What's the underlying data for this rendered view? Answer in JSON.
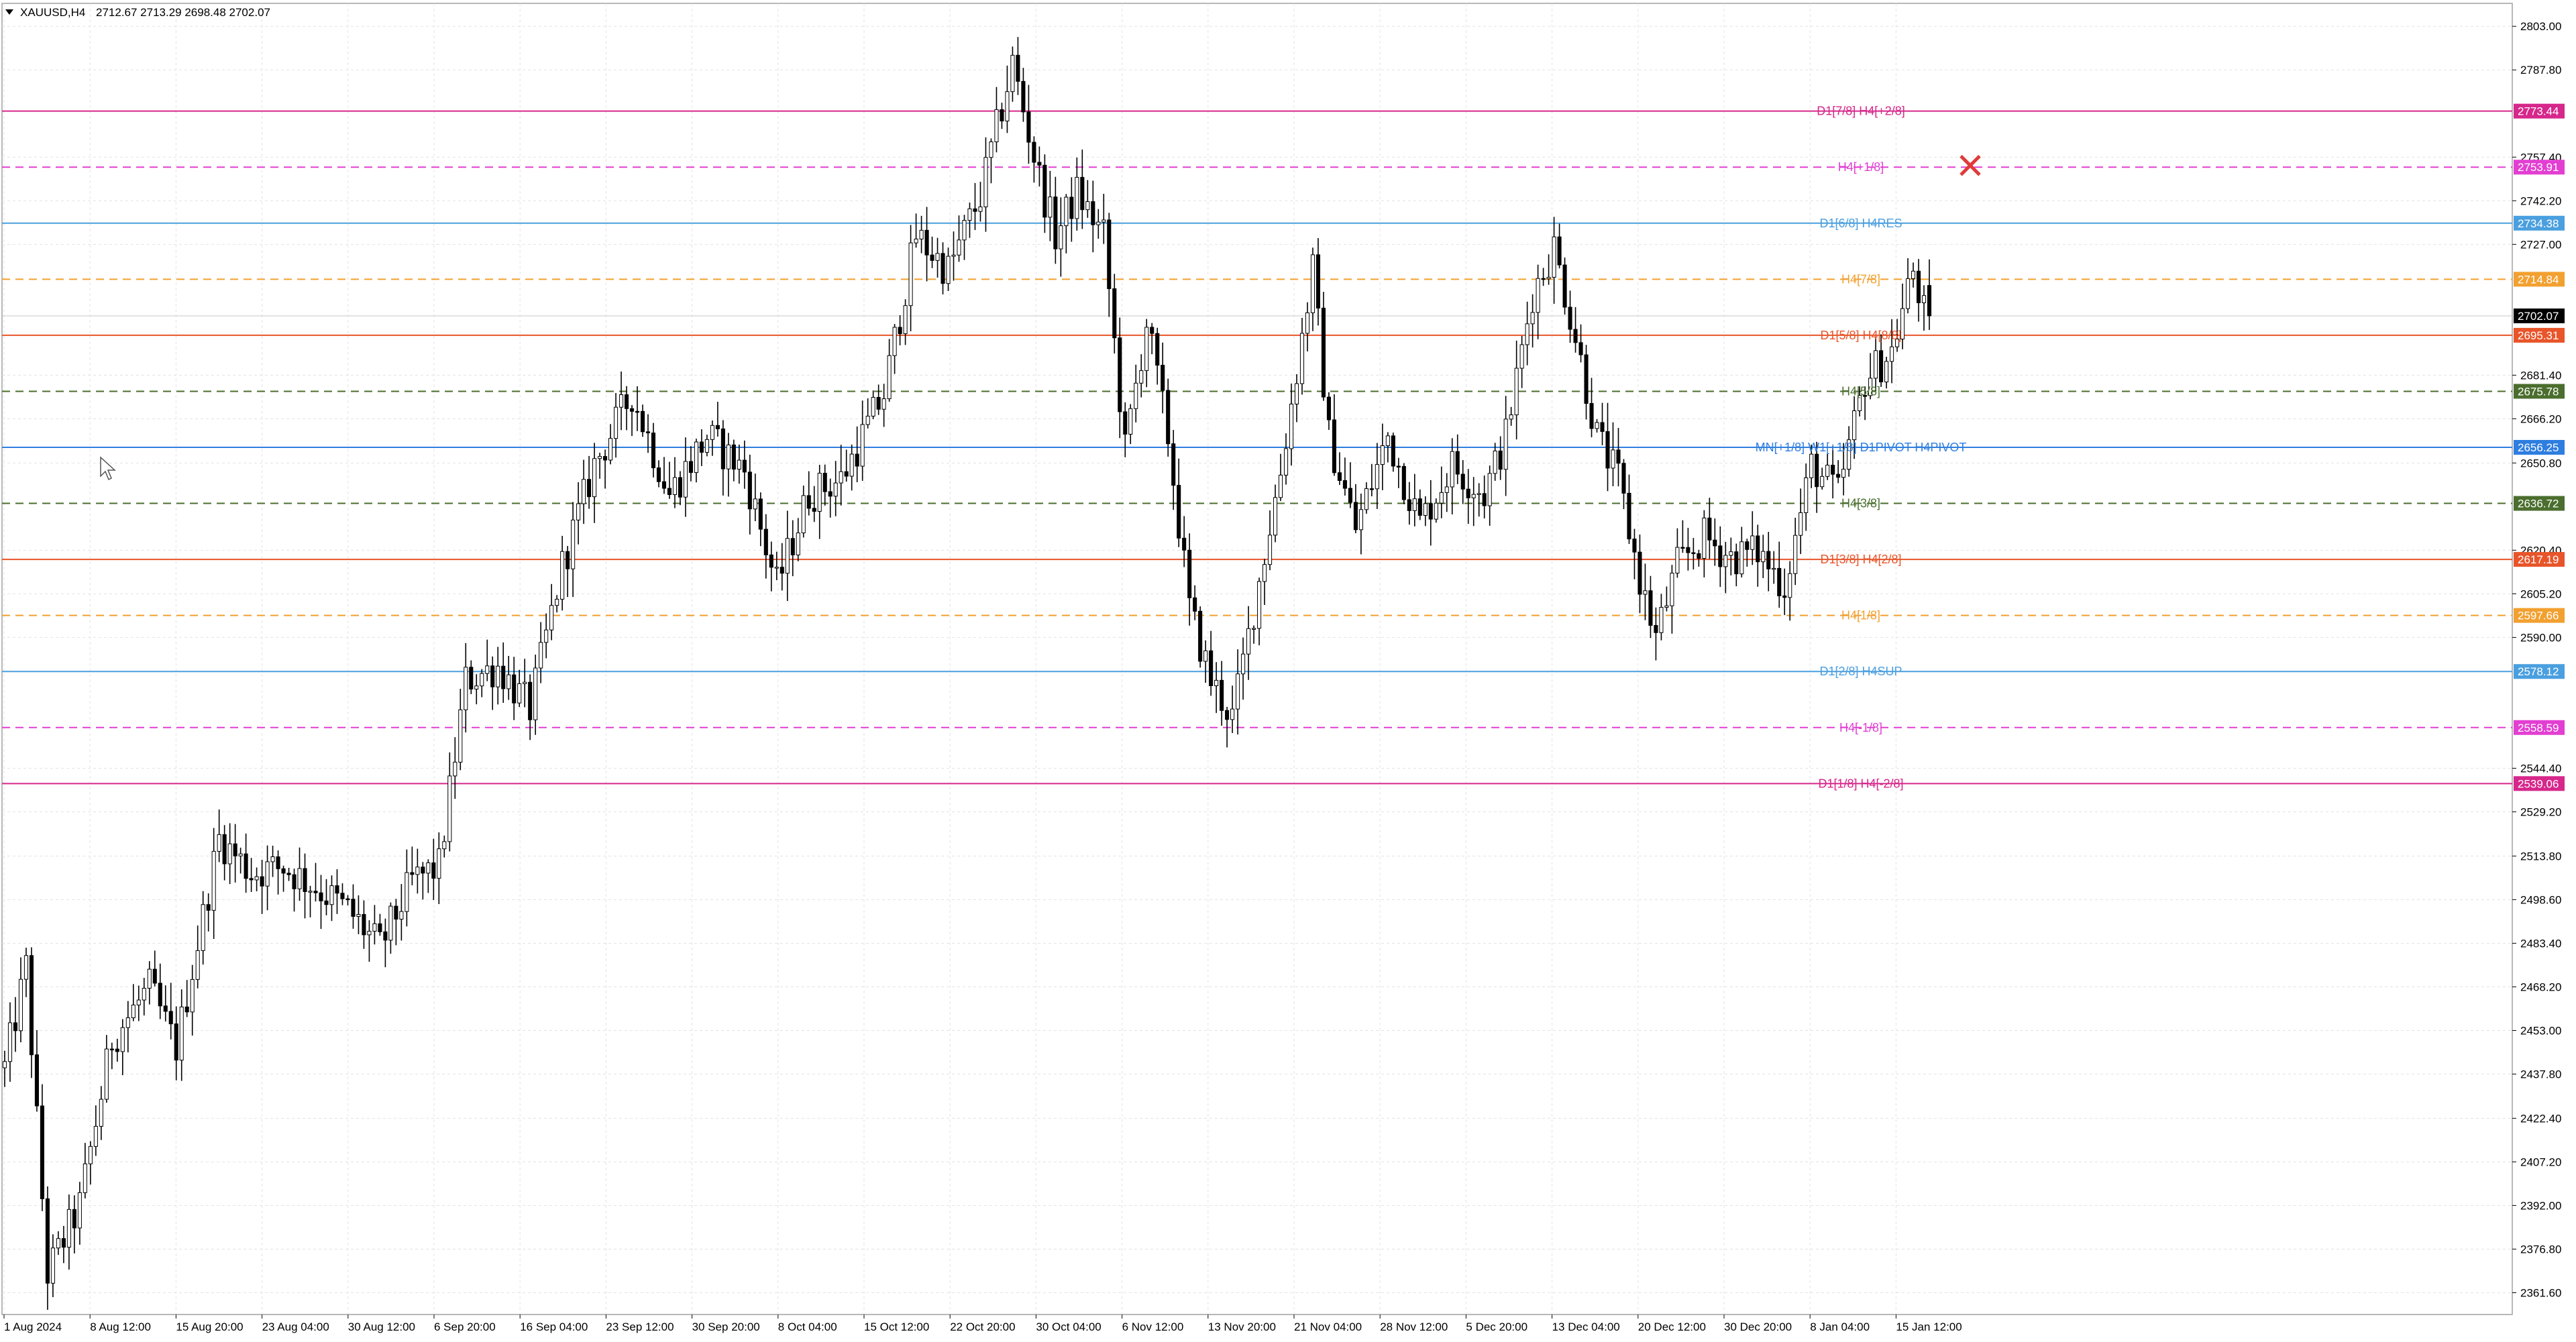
{
  "header": {
    "symbol": "XAUUSD,H4",
    "ohlc": "2712.67 2713.29 2698.48 2702.07"
  },
  "chart_data": {
    "type": "candlestick",
    "symbol": "XAUUSD",
    "timeframe": "H4",
    "ohlc_last": {
      "open": 2712.67,
      "high": 2713.29,
      "low": 2698.48,
      "close": 2702.07
    },
    "current_price": 2702.07,
    "ylim": [
      2354.0,
      2811.0
    ],
    "grid": true,
    "price_ticks": [
      2803.0,
      2787.8,
      2757.4,
      2742.2,
      2727.0,
      2681.4,
      2666.2,
      2650.8,
      2620.4,
      2605.2,
      2590.0,
      2544.4,
      2529.2,
      2513.8,
      2498.6,
      2483.4,
      2468.2,
      2453.0,
      2437.8,
      2422.4,
      2407.2,
      2392.0,
      2376.8,
      2361.6
    ],
    "date_labels": [
      "1 Aug 2024",
      "8 Aug 12:00",
      "15 Aug 20:00",
      "23 Aug 04:00",
      "30 Aug 12:00",
      "6 Sep 20:00",
      "16 Sep 04:00",
      "23 Sep 12:00",
      "30 Sep 20:00",
      "8 Oct 04:00",
      "15 Oct 12:00",
      "22 Oct 20:00",
      "30 Oct 04:00",
      "6 Nov 12:00",
      "13 Nov 20:00",
      "21 Nov 04:00",
      "28 Nov 12:00",
      "5 Dec 20:00",
      "13 Dec 04:00",
      "20 Dec 12:00",
      "30 Dec 20:00",
      "8 Jan 04:00",
      "15 Jan 12:00"
    ],
    "price_path": [
      [
        0,
        2440
      ],
      [
        4,
        2475
      ],
      [
        8,
        2368
      ],
      [
        14,
        2392
      ],
      [
        20,
        2450
      ],
      [
        27,
        2468
      ],
      [
        32,
        2447
      ],
      [
        40,
        2520
      ],
      [
        46,
        2508
      ],
      [
        52,
        2510
      ],
      [
        58,
        2503
      ],
      [
        64,
        2495
      ],
      [
        70,
        2482
      ],
      [
        76,
        2505
      ],
      [
        81,
        2510
      ],
      [
        86,
        2575
      ],
      [
        92,
        2580
      ],
      [
        98,
        2565
      ],
      [
        104,
        2615
      ],
      [
        110,
        2650
      ],
      [
        117,
        2675
      ],
      [
        124,
        2640
      ],
      [
        131,
        2660
      ],
      [
        138,
        2648
      ],
      [
        144,
        2608
      ],
      [
        150,
        2640
      ],
      [
        156,
        2645
      ],
      [
        164,
        2675
      ],
      [
        170,
        2730
      ],
      [
        176,
        2718
      ],
      [
        182,
        2744
      ],
      [
        188,
        2790
      ],
      [
        193,
        2750
      ],
      [
        196,
        2730
      ],
      [
        200,
        2745
      ],
      [
        205,
        2730
      ],
      [
        209,
        2655
      ],
      [
        213,
        2700
      ],
      [
        217,
        2660
      ],
      [
        221,
        2600
      ],
      [
        225,
        2575
      ],
      [
        229,
        2562
      ],
      [
        233,
        2600
      ],
      [
        238,
        2648
      ],
      [
        244,
        2718
      ],
      [
        247,
        2660
      ],
      [
        252,
        2628
      ],
      [
        258,
        2660
      ],
      [
        264,
        2630
      ],
      [
        270,
        2650
      ],
      [
        276,
        2640
      ],
      [
        280,
        2660
      ],
      [
        285,
        2710
      ],
      [
        289,
        2726
      ],
      [
        293,
        2695
      ],
      [
        297,
        2660
      ],
      [
        301,
        2645
      ],
      [
        305,
        2610
      ],
      [
        308,
        2590
      ],
      [
        312,
        2615
      ],
      [
        317,
        2625
      ],
      [
        322,
        2618
      ],
      [
        327,
        2620
      ],
      [
        332,
        2608
      ],
      [
        337,
        2650
      ],
      [
        342,
        2640
      ],
      [
        347,
        2680
      ],
      [
        352,
        2690
      ],
      [
        356,
        2718
      ],
      [
        358,
        2703
      ]
    ],
    "levels": [
      {
        "label": "D1[7/8] H4[+2/8]",
        "price": 2773.44,
        "value_text": "2773.44",
        "color": "#d6278b",
        "style": "solid"
      },
      {
        "label": "H4[+1/8]",
        "price": 2753.91,
        "value_text": "2753.91",
        "color": "#e23fd2",
        "style": "dashed"
      },
      {
        "label": "D1[6/8] H4RES",
        "price": 2734.38,
        "value_text": "2734.38",
        "color": "#4a9fdf",
        "style": "solid"
      },
      {
        "label": "H4[7/8]",
        "price": 2714.84,
        "value_text": "2714.84",
        "color": "#f2a030",
        "style": "dashed"
      },
      {
        "label": "D1[5/8] H4[8/8]",
        "price": 2695.31,
        "value_text": "2695.31",
        "color": "#e8552a",
        "style": "solid"
      },
      {
        "label": "H4[5/8]",
        "price": 2675.78,
        "value_text": "2675.78",
        "color": "#4b6e2e",
        "style": "dashed"
      },
      {
        "label": "MN[+1/8] W1[+1/8] D1PIVOT H4PIVOT",
        "price": 2656.25,
        "value_text": "2656.25",
        "color": "#2e7ee0",
        "style": "solid"
      },
      {
        "label": "H4[3/8]",
        "price": 2636.72,
        "value_text": "2636.72",
        "color": "#4b6e2e",
        "style": "dashed"
      },
      {
        "label": "D1[3/8] H4[2/8]",
        "price": 2617.19,
        "value_text": "2617.19",
        "color": "#e8552a",
        "style": "solid"
      },
      {
        "label": "H4[1/8]",
        "price": 2597.66,
        "value_text": "2597.66",
        "color": "#f2a030",
        "style": "dashed"
      },
      {
        "label": "D1[2/8] H4SUP",
        "price": 2578.12,
        "value_text": "2578.12",
        "color": "#4a9fdf",
        "style": "solid"
      },
      {
        "label": "H4[-1/8]",
        "price": 2558.59,
        "value_text": "2558.59",
        "color": "#e23fd2",
        "style": "dashed"
      },
      {
        "label": "D1[1/8] H4[-2/8]",
        "price": 2539.06,
        "value_text": "2539.06",
        "color": "#d6278b",
        "style": "solid"
      }
    ],
    "marker": {
      "type": "cross",
      "price": 2754.5,
      "color": "#e03a3a",
      "icon": "close-icon"
    }
  }
}
